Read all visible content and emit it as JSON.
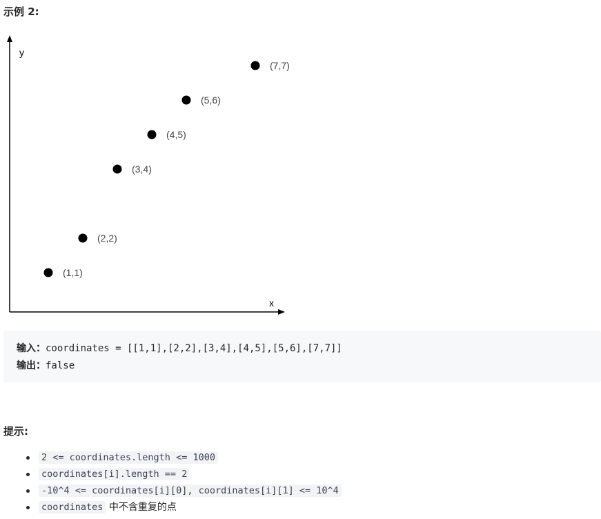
{
  "example_heading": "示例 2:",
  "chart_data": {
    "type": "scatter",
    "xlabel": "x",
    "ylabel": "y",
    "points": [
      {
        "x": 1,
        "y": 1,
        "label": "(1,1)"
      },
      {
        "x": 2,
        "y": 2,
        "label": "(2,2)"
      },
      {
        "x": 3,
        "y": 4,
        "label": "(3,4)"
      },
      {
        "x": 4,
        "y": 5,
        "label": "(4,5)"
      },
      {
        "x": 5,
        "y": 6,
        "label": "(5,6)"
      },
      {
        "x": 7,
        "y": 7,
        "label": "(7,7)"
      }
    ],
    "grid": false,
    "legend": "none"
  },
  "example": {
    "input_label": "输入：",
    "input_value": "coordinates = [[1,1],[2,2],[3,4],[4,5],[5,6],[7,7]]",
    "output_label": "输出：",
    "output_value": "false"
  },
  "hints_heading": "提示:",
  "hints": {
    "h1_code": "2 <= coordinates.length <= 1000",
    "h2_code": "coordinates[i].length == 2",
    "h3_code": "-10^4 <= coordinates[i][0], coordinates[i][1] <= 10^4",
    "h4_code": "coordinates",
    "h4_text": " 中不含重复的点"
  }
}
